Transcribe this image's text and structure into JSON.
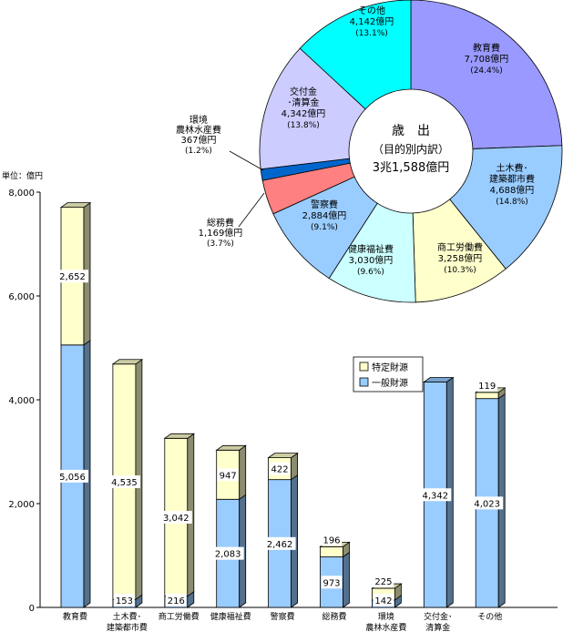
{
  "chart_data": [
    {
      "type": "bar",
      "stacked": true,
      "unit_label": "単位：億円",
      "ylim": [
        0,
        8000
      ],
      "yticks": [
        "0",
        "2,000",
        "4,000",
        "6,000",
        "8,000"
      ],
      "ytick_values": [
        0,
        2000,
        4000,
        6000,
        8000
      ],
      "categories": [
        [
          "教育費"
        ],
        [
          "土木費･",
          "建築都市費"
        ],
        [
          "商工労働費"
        ],
        [
          "健康福祉費"
        ],
        [
          "警察費"
        ],
        [
          "総務費"
        ],
        [
          "環境",
          "農林水産費"
        ],
        [
          "交付金･",
          "清算金"
        ],
        [
          "その他"
        ]
      ],
      "series": [
        {
          "name": "一般財源",
          "color": "#99ccff",
          "values": [
            5056,
            153,
            216,
            2083,
            2462,
            973,
            142,
            4342,
            4023
          ],
          "labels": [
            "5,056",
            "153",
            "216",
            "2,083",
            "2,462",
            "973",
            "142",
            "4,342",
            "4,023"
          ]
        },
        {
          "name": "特定財源",
          "color": "#ffffcc",
          "values": [
            2652,
            4535,
            3042,
            947,
            422,
            196,
            225,
            0,
            119
          ],
          "labels": [
            "2,652",
            "4,535",
            "3,042",
            "947",
            "422",
            "196",
            "225",
            "",
            "119"
          ]
        }
      ],
      "legend": [
        "特定財源",
        "一般財源"
      ]
    },
    {
      "type": "pie",
      "variant": "donut",
      "center_text": [
        "歳　出",
        "（目的別内訳）",
        "3兆1,588億円"
      ],
      "slices": [
        {
          "label": [
            "教育費",
            "7,708億円",
            "(24.4%)"
          ],
          "percent": 24.4,
          "color": "#9999ff"
        },
        {
          "label": [
            "土木費･",
            "建築都市費",
            "4,688億円",
            "(14.8%)"
          ],
          "percent": 14.8,
          "color": "#99ccff"
        },
        {
          "label": [
            "商工労働費",
            "3,258億円",
            "(10.3%)"
          ],
          "percent": 10.3,
          "color": "#ffffcc"
        },
        {
          "label": [
            "健康福祉費",
            "3,030億円",
            "(9.6%)"
          ],
          "percent": 9.6,
          "color": "#ccffff"
        },
        {
          "label": [
            "警察費",
            "2,884億円",
            "(9.1%)"
          ],
          "percent": 9.1,
          "color": "#99ccff"
        },
        {
          "label": [
            "総務費",
            "1,169億円",
            "(3.7%)"
          ],
          "percent": 3.7,
          "color": "#ff8080"
        },
        {
          "label": [
            "環境",
            "農林水産費",
            "367億円",
            "(1.2%)"
          ],
          "percent": 1.2,
          "color": "#0066cc"
        },
        {
          "label": [
            "交付金",
            "･清算金",
            "4,342億円",
            "(13.8%)"
          ],
          "percent": 13.8,
          "color": "#ccccff"
        },
        {
          "label": [
            "その他",
            "4,142億円",
            "(13.1%)"
          ],
          "percent": 13.1,
          "color": "#00ffff"
        }
      ]
    }
  ]
}
